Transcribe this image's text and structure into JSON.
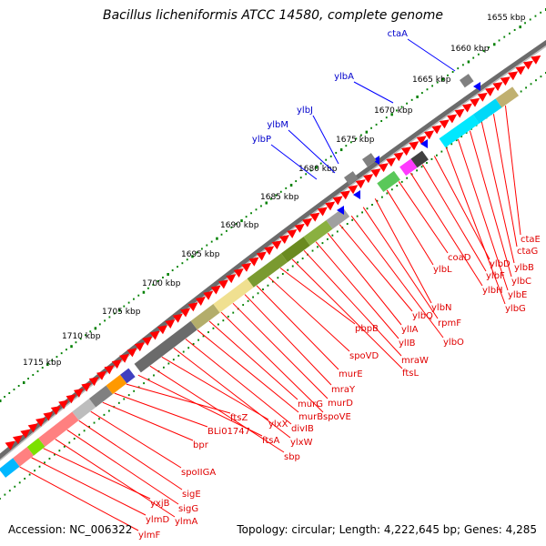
{
  "title": "Bacillus licheniformis ATCC 14580, complete genome",
  "accession": "Accession: NC_006322",
  "topology": "Topology: circular; Length: 4,222,645 bp; Genes: 4,285",
  "ticks": [
    "1655 kbp",
    "1660 kbp",
    "1665 kbp",
    "1670 kbp",
    "1675 kbp",
    "1680 kbp",
    "1685 kbp",
    "1690 kbp",
    "1695 kbp",
    "1700 kbp",
    "1705 kbp",
    "1710 kbp",
    "1715 kbp"
  ],
  "outer_labels": [
    "ctaA",
    "ylbA",
    "ylbJ",
    "ylbM",
    "ylbP"
  ],
  "inner_labels": [
    "ctaE",
    "ctaG",
    "ylbB",
    "ylbC",
    "ylbE",
    "ylbG",
    "ylbD",
    "ylbF",
    "ylbH",
    "coaD",
    "ylbL",
    "ylbN",
    "rpmF",
    "ylbO",
    "ylbQ",
    "ylIA",
    "ylIB",
    "mraW",
    "ftsL",
    "pbpB",
    "spoVD",
    "murE",
    "mraY",
    "murD",
    "spoVE",
    "murG",
    "murB",
    "divIB",
    "ylxW",
    "ylxX",
    "sbp",
    "ftsA",
    "ftsZ",
    "BLi01747",
    "bpr",
    "spoIIGA",
    "sigE",
    "sigG",
    "ylmA",
    "yxjB",
    "ylmD",
    "ylmF"
  ],
  "colors": {
    "gene_red": "#ff0000",
    "label_red": "#e00000",
    "label_blue": "#0000cc",
    "tick_green": "#008000"
  }
}
